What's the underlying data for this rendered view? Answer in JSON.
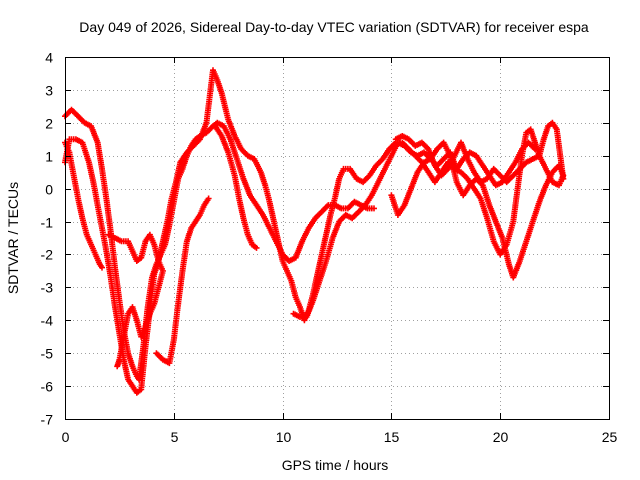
{
  "chart_data": {
    "type": "scatter",
    "title": "Day 049 of 2026, Sidereal Day-to-day VTEC variation (SDTVAR) for receiver espa",
    "xlabel": "GPS time / hours",
    "ylabel": "SDTVAR / TECUs",
    "xlim": [
      0,
      25
    ],
    "ylim": [
      -7,
      4
    ],
    "x_ticks": [
      0,
      5,
      10,
      15,
      20,
      25
    ],
    "y_ticks": [
      -7,
      -6,
      -5,
      -4,
      -3,
      -2,
      -1,
      0,
      1,
      2,
      3,
      4
    ],
    "x_tick_labels": [
      "0",
      "5",
      "10",
      "15",
      "20",
      "25"
    ],
    "y_tick_labels": [
      "-7",
      "-6",
      "-5",
      "-4",
      "-3",
      "-2",
      "-1",
      "0",
      "1",
      "2",
      "3",
      "4"
    ],
    "grid": true,
    "legend": "none",
    "marker": "+",
    "color": "#ff0000",
    "series": [
      {
        "values": [
          [
            0.0,
            2.2
          ],
          [
            0.3,
            2.4
          ],
          [
            0.6,
            2.2
          ],
          [
            0.9,
            2.0
          ],
          [
            1.2,
            1.9
          ],
          [
            1.5,
            1.4
          ],
          [
            1.7,
            0.6
          ],
          [
            1.9,
            -0.3
          ],
          [
            2.1,
            -1.3
          ],
          [
            2.3,
            -2.4
          ],
          [
            2.5,
            -3.4
          ],
          [
            2.7,
            -4.3
          ],
          [
            2.9,
            -5.0
          ],
          [
            3.1,
            -5.4
          ],
          [
            3.3,
            -5.7
          ],
          [
            3.4,
            -5.8
          ],
          [
            3.6,
            -4.8
          ],
          [
            3.8,
            -3.6
          ],
          [
            4.0,
            -2.7
          ],
          [
            4.2,
            -2.3
          ],
          [
            4.4,
            -2.0
          ],
          [
            4.6,
            -1.7
          ],
          [
            4.8,
            -1.1
          ],
          [
            5.0,
            -0.4
          ],
          [
            5.2,
            0.3
          ],
          [
            5.4,
            0.6
          ],
          [
            5.6,
            1.0
          ],
          [
            5.8,
            1.3
          ],
          [
            6.0,
            1.5
          ],
          [
            6.2,
            1.6
          ],
          [
            6.5,
            1.7
          ],
          [
            6.8,
            1.9
          ],
          [
            7.0,
            2.0
          ],
          [
            7.3,
            1.9
          ],
          [
            7.6,
            1.5
          ],
          [
            7.9,
            0.9
          ],
          [
            8.2,
            0.3
          ],
          [
            8.5,
            -0.2
          ],
          [
            8.8,
            -0.5
          ],
          [
            9.1,
            -0.8
          ],
          [
            9.4,
            -1.2
          ],
          [
            9.7,
            -1.6
          ],
          [
            10.0,
            -2.0
          ],
          [
            10.3,
            -2.2
          ],
          [
            10.6,
            -2.1
          ],
          [
            10.9,
            -1.6
          ],
          [
            11.2,
            -1.2
          ],
          [
            11.5,
            -0.9
          ],
          [
            11.8,
            -0.7
          ],
          [
            12.1,
            -0.5
          ],
          [
            12.4,
            -0.5
          ],
          [
            12.7,
            -0.6
          ],
          [
            13.0,
            -0.6
          ],
          [
            13.3,
            -0.4
          ],
          [
            13.6,
            -0.5
          ],
          [
            13.9,
            -0.6
          ],
          [
            14.2,
            -0.6
          ]
        ]
      },
      {
        "values": [
          [
            0.0,
            1.4
          ],
          [
            0.2,
            1.1
          ],
          [
            0.4,
            0.4
          ],
          [
            0.6,
            -0.3
          ],
          [
            0.8,
            -0.9
          ],
          [
            1.0,
            -1.4
          ],
          [
            1.2,
            -1.7
          ],
          [
            1.4,
            -2.0
          ],
          [
            1.6,
            -2.3
          ],
          [
            1.7,
            -2.4
          ]
        ]
      },
      {
        "values": [
          [
            0.0,
            0.8
          ],
          [
            0.2,
            1.5
          ],
          [
            0.5,
            1.5
          ],
          [
            0.8,
            1.4
          ],
          [
            1.1,
            0.8
          ],
          [
            1.3,
            0.2
          ],
          [
            1.5,
            -0.5
          ],
          [
            1.7,
            -1.2
          ],
          [
            1.9,
            -1.9
          ],
          [
            2.1,
            -2.7
          ],
          [
            2.3,
            -3.6
          ],
          [
            2.5,
            -4.4
          ],
          [
            2.7,
            -5.2
          ],
          [
            2.9,
            -5.8
          ],
          [
            3.1,
            -6.0
          ],
          [
            3.3,
            -6.2
          ],
          [
            3.5,
            -6.1
          ],
          [
            3.7,
            -4.8
          ],
          [
            3.9,
            -3.7
          ],
          [
            4.1,
            -2.6
          ],
          [
            4.3,
            -2.2
          ],
          [
            4.5,
            -1.6
          ],
          [
            4.7,
            -1.0
          ],
          [
            4.9,
            -0.3
          ],
          [
            5.1,
            0.2
          ],
          [
            5.3,
            0.8
          ],
          [
            5.6,
            1.1
          ],
          [
            5.9,
            1.3
          ],
          [
            6.2,
            1.5
          ],
          [
            6.5,
            2.0
          ],
          [
            6.8,
            3.6
          ],
          [
            7.0,
            3.3
          ],
          [
            7.2,
            2.9
          ],
          [
            7.5,
            2.1
          ],
          [
            7.8,
            1.6
          ],
          [
            8.1,
            1.2
          ],
          [
            8.4,
            1.0
          ],
          [
            8.7,
            0.9
          ],
          [
            9.0,
            0.5
          ],
          [
            9.2,
            0.1
          ],
          [
            9.4,
            -0.4
          ],
          [
            9.6,
            -1.0
          ],
          [
            9.8,
            -1.6
          ],
          [
            10.0,
            -2.2
          ],
          [
            10.2,
            -2.5
          ],
          [
            10.4,
            -2.8
          ],
          [
            10.6,
            -3.3
          ],
          [
            10.8,
            -3.6
          ],
          [
            11.0,
            -4.0
          ],
          [
            11.2,
            -3.7
          ],
          [
            11.4,
            -3.2
          ],
          [
            11.6,
            -2.6
          ],
          [
            11.8,
            -2.0
          ],
          [
            12.0,
            -1.4
          ],
          [
            12.2,
            -0.8
          ],
          [
            12.4,
            -0.3
          ],
          [
            12.6,
            0.3
          ],
          [
            12.8,
            0.6
          ],
          [
            13.1,
            0.6
          ],
          [
            13.4,
            0.3
          ],
          [
            13.7,
            0.2
          ],
          [
            14.0,
            0.4
          ],
          [
            14.3,
            0.7
          ],
          [
            14.6,
            0.9
          ],
          [
            14.9,
            1.2
          ],
          [
            15.2,
            1.4
          ],
          [
            15.5,
            1.4
          ],
          [
            15.8,
            1.2
          ],
          [
            16.1,
            1.0
          ],
          [
            16.4,
            0.8
          ],
          [
            16.7,
            0.5
          ],
          [
            17.0,
            0.2
          ],
          [
            17.3,
            0.5
          ],
          [
            17.6,
            0.8
          ],
          [
            17.9,
            0.6
          ],
          [
            18.2,
            0.5
          ],
          [
            18.5,
            0.3
          ],
          [
            18.8,
            0.0
          ],
          [
            19.1,
            -0.3
          ],
          [
            19.4,
            -0.9
          ],
          [
            19.7,
            -1.6
          ],
          [
            20.0,
            -2.0
          ],
          [
            20.3,
            -1.7
          ],
          [
            20.6,
            -1.0
          ],
          [
            20.8,
            0.0
          ],
          [
            21.0,
            1.0
          ],
          [
            21.2,
            1.7
          ],
          [
            21.4,
            1.8
          ],
          [
            21.6,
            1.4
          ],
          [
            21.8,
            1.0
          ],
          [
            22.0,
            1.5
          ],
          [
            22.2,
            1.9
          ],
          [
            22.4,
            2.0
          ],
          [
            22.6,
            1.8
          ],
          [
            22.8,
            0.8
          ],
          [
            22.9,
            0.3
          ]
        ]
      },
      {
        "values": [
          [
            2.0,
            -1.4
          ],
          [
            2.3,
            -1.5
          ],
          [
            2.6,
            -1.6
          ],
          [
            2.9,
            -1.6
          ],
          [
            3.1,
            -1.9
          ],
          [
            3.3,
            -2.2
          ],
          [
            3.5,
            -2.1
          ],
          [
            3.7,
            -1.6
          ],
          [
            3.9,
            -1.4
          ],
          [
            4.1,
            -1.7
          ],
          [
            4.3,
            -2.2
          ],
          [
            4.5,
            -2.5
          ],
          [
            4.3,
            -3.0
          ],
          [
            4.1,
            -3.5
          ],
          [
            3.9,
            -3.8
          ],
          [
            3.7,
            -4.2
          ],
          [
            3.5,
            -4.5
          ],
          [
            3.3,
            -4.0
          ],
          [
            3.1,
            -3.6
          ],
          [
            2.9,
            -3.8
          ],
          [
            2.7,
            -4.5
          ],
          [
            2.5,
            -5.2
          ],
          [
            2.4,
            -5.4
          ]
        ]
      },
      {
        "values": [
          [
            4.2,
            -5.0
          ],
          [
            4.5,
            -5.2
          ],
          [
            4.8,
            -5.3
          ],
          [
            5.0,
            -4.6
          ],
          [
            5.2,
            -3.5
          ],
          [
            5.4,
            -2.5
          ],
          [
            5.6,
            -1.6
          ],
          [
            5.8,
            -1.2
          ],
          [
            6.0,
            -1.0
          ],
          [
            6.2,
            -0.8
          ],
          [
            6.4,
            -0.5
          ],
          [
            6.6,
            -0.3
          ]
        ]
      },
      {
        "values": [
          [
            6.9,
            1.9
          ],
          [
            7.2,
            1.6
          ],
          [
            7.5,
            1.1
          ],
          [
            7.8,
            0.4
          ],
          [
            8.0,
            -0.3
          ],
          [
            8.2,
            -0.9
          ],
          [
            8.4,
            -1.4
          ],
          [
            8.6,
            -1.7
          ],
          [
            8.8,
            -1.8
          ]
        ]
      },
      {
        "values": [
          [
            10.5,
            -3.8
          ],
          [
            10.8,
            -3.9
          ],
          [
            11.1,
            -3.9
          ],
          [
            11.4,
            -3.4
          ],
          [
            11.7,
            -2.8
          ],
          [
            12.0,
            -2.2
          ],
          [
            12.3,
            -1.5
          ],
          [
            12.6,
            -1.0
          ],
          [
            12.9,
            -0.8
          ],
          [
            13.2,
            -0.9
          ],
          [
            13.5,
            -0.7
          ],
          [
            13.8,
            -0.5
          ],
          [
            14.1,
            -0.2
          ],
          [
            14.4,
            0.2
          ],
          [
            14.7,
            0.6
          ],
          [
            15.0,
            1.0
          ],
          [
            15.3,
            1.4
          ],
          [
            15.6,
            1.3
          ],
          [
            15.9,
            1.1
          ],
          [
            16.2,
            1.0
          ],
          [
            16.5,
            1.1
          ],
          [
            16.8,
            0.9
          ],
          [
            17.1,
            0.7
          ],
          [
            17.4,
            0.9
          ],
          [
            17.7,
            1.1
          ],
          [
            18.0,
            0.6
          ],
          [
            18.3,
            0.9
          ],
          [
            18.6,
            1.1
          ],
          [
            18.9,
            1.0
          ],
          [
            19.2,
            0.7
          ],
          [
            19.5,
            0.4
          ],
          [
            19.8,
            0.1
          ],
          [
            20.1,
            0.2
          ],
          [
            20.4,
            0.5
          ],
          [
            20.7,
            0.8
          ],
          [
            21.0,
            1.2
          ],
          [
            21.3,
            1.4
          ],
          [
            21.6,
            1.2
          ]
        ]
      },
      {
        "values": [
          [
            15.0,
            -0.2
          ],
          [
            15.3,
            -0.8
          ],
          [
            15.6,
            -0.5
          ],
          [
            15.9,
            0.0
          ],
          [
            16.2,
            0.5
          ],
          [
            16.5,
            0.8
          ],
          [
            16.8,
            0.9
          ],
          [
            17.1,
            1.2
          ],
          [
            17.4,
            1.4
          ],
          [
            17.7,
            1.0
          ],
          [
            18.0,
            0.2
          ],
          [
            18.3,
            -0.2
          ],
          [
            18.6,
            0.1
          ],
          [
            18.9,
            0.3
          ],
          [
            19.2,
            0.1
          ],
          [
            19.5,
            -0.5
          ],
          [
            19.8,
            -1.0
          ],
          [
            20.1,
            -1.5
          ],
          [
            20.4,
            -2.3
          ],
          [
            20.6,
            -2.7
          ],
          [
            20.9,
            -2.2
          ],
          [
            21.2,
            -1.6
          ],
          [
            21.5,
            -1.0
          ],
          [
            21.8,
            -0.4
          ],
          [
            22.1,
            0.1
          ],
          [
            22.4,
            0.5
          ],
          [
            22.7,
            0.7
          ],
          [
            22.9,
            0.4
          ],
          [
            22.7,
            0.1
          ],
          [
            22.4,
            0.2
          ],
          [
            22.1,
            0.6
          ],
          [
            21.8,
            1.0
          ],
          [
            21.5,
            0.9
          ],
          [
            21.2,
            0.8
          ],
          [
            20.9,
            0.6
          ],
          [
            20.6,
            0.4
          ],
          [
            20.3,
            0.2
          ],
          [
            20.0,
            0.4
          ],
          [
            19.7,
            0.6
          ],
          [
            19.4,
            0.3
          ],
          [
            19.1,
            0.2
          ],
          [
            18.8,
            0.5
          ],
          [
            18.5,
            0.9
          ],
          [
            18.2,
            1.4
          ],
          [
            17.9,
            1.0
          ],
          [
            17.6,
            0.6
          ],
          [
            17.3,
            0.4
          ],
          [
            17.0,
            0.7
          ],
          [
            16.7,
            1.2
          ],
          [
            16.4,
            1.4
          ],
          [
            16.1,
            1.3
          ],
          [
            15.8,
            1.5
          ],
          [
            15.5,
            1.6
          ],
          [
            15.2,
            1.5
          ]
        ]
      }
    ]
  }
}
